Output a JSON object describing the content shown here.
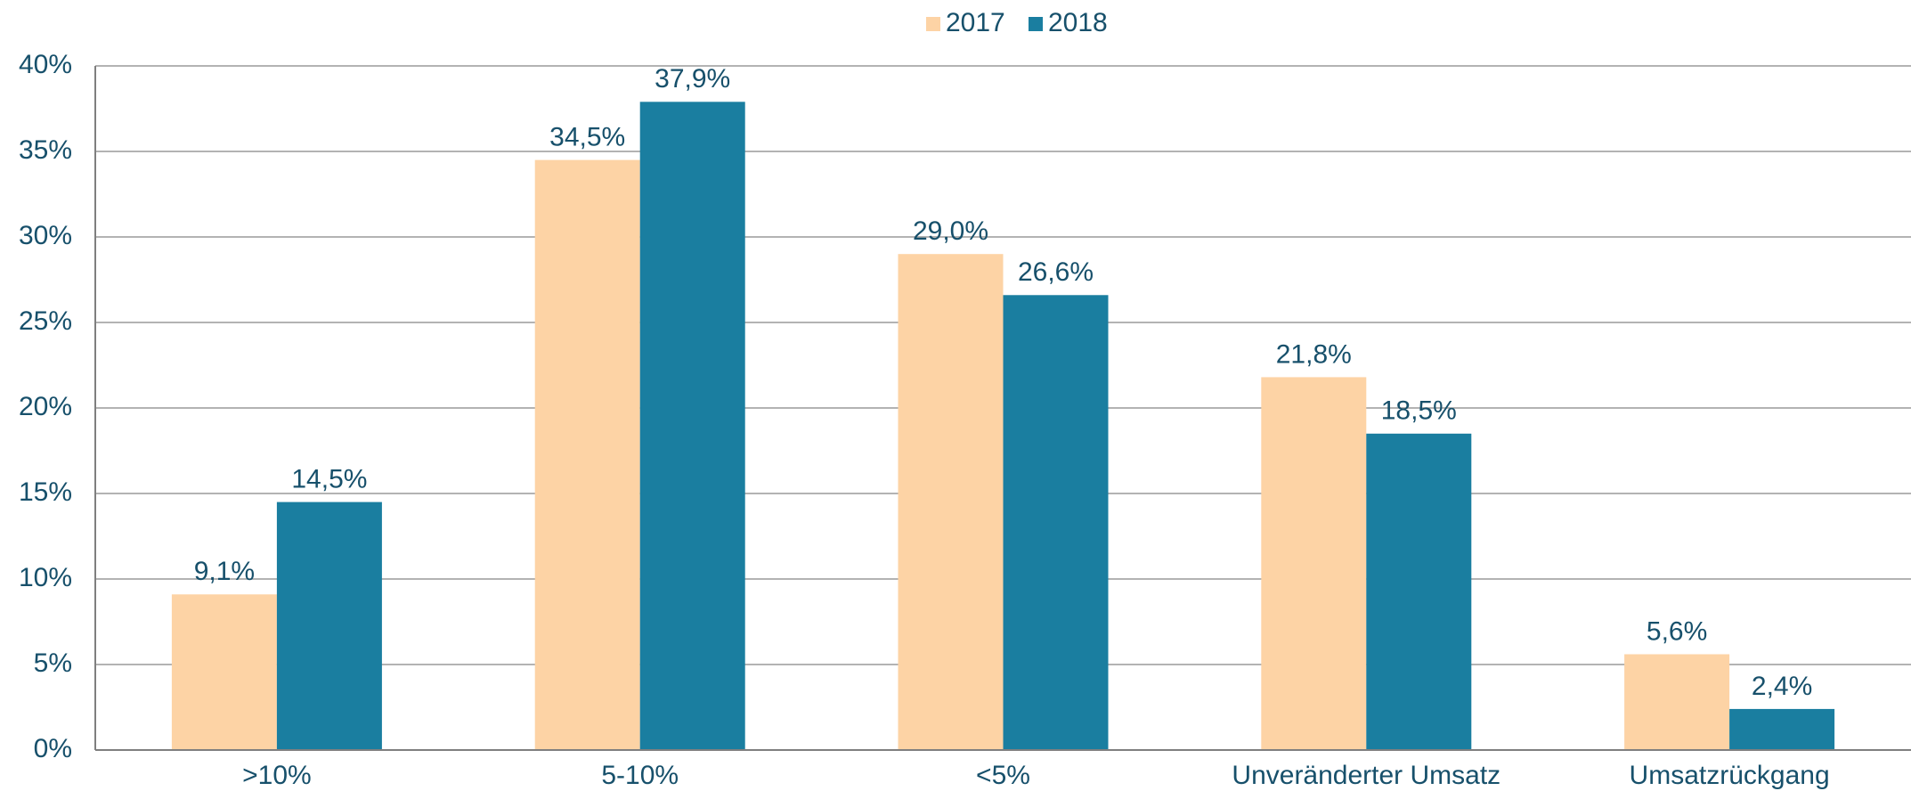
{
  "chart_data": {
    "type": "bar",
    "categories": [
      ">10%",
      "5-10%",
      "<5%",
      "Unveränderter Umsatz",
      "Umsatzrückgang"
    ],
    "series": [
      {
        "name": "2017",
        "color": "#fdd3a5",
        "values": [
          9.1,
          34.5,
          29.0,
          21.8,
          5.6
        ],
        "value_labels": [
          "9,1%",
          "34,5%",
          "29,0%",
          "21,8%",
          "5,6%"
        ]
      },
      {
        "name": "2018",
        "color": "#1a7ea0",
        "values": [
          14.5,
          37.9,
          26.6,
          18.5,
          2.4
        ],
        "value_labels": [
          "14,5%",
          "37,9%",
          "26,6%",
          "18,5%",
          "2,4%"
        ]
      }
    ],
    "ylim": [
      0,
      40
    ],
    "yticks": [
      {
        "value": 0,
        "label": "0%"
      },
      {
        "value": 5,
        "label": "5%"
      },
      {
        "value": 10,
        "label": "10%"
      },
      {
        "value": 15,
        "label": "15%"
      },
      {
        "value": 20,
        "label": "20%"
      },
      {
        "value": 25,
        "label": "25%"
      },
      {
        "value": 30,
        "label": "30%"
      },
      {
        "value": 35,
        "label": "35%"
      },
      {
        "value": 40,
        "label": "40%"
      }
    ],
    "grid": true,
    "legend": "top"
  }
}
